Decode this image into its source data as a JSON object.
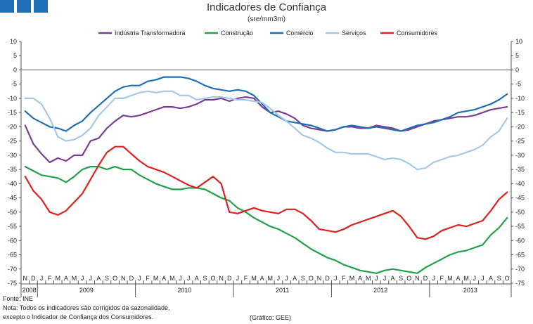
{
  "header": {
    "logo": "logo-squares",
    "title": "Indicadores de Confiança",
    "subtitle": "(sre/mm3m)"
  },
  "footer": {
    "source": "Fonte: INE",
    "note1": "Nota: Todos os indicadores são corrigidos da sazonalidade,",
    "note2": "excepto o Indicador de Confiança dos Consumidores.",
    "credit": "(Gráfico: GEE)"
  },
  "chart_data": {
    "type": "line",
    "title": "Indicadores de Confiança",
    "subtitle": "(sre/mm3m)",
    "xlabel": "",
    "ylabel": "",
    "ylim": [
      -75,
      10
    ],
    "yticks": [
      10,
      5,
      0,
      -5,
      -10,
      -15,
      -20,
      -25,
      -30,
      -35,
      -40,
      -45,
      -50,
      -55,
      -60,
      -65,
      -70,
      -75
    ],
    "ytick_labels": [
      "10",
      "5",
      "0",
      "-5",
      "-10",
      "-15",
      "-20",
      "-25",
      "-30",
      "-35",
      "-40",
      "-45",
      "-50",
      "-55",
      "-60",
      "-65",
      "-70",
      "-75"
    ],
    "grid": false,
    "legend": "top",
    "categories": [
      "N",
      "D",
      "J",
      "F",
      "M",
      "A",
      "M",
      "J",
      "J",
      "A",
      "S",
      "O",
      "N",
      "D",
      "J",
      "F",
      "M",
      "A",
      "M",
      "J",
      "J",
      "A",
      "S",
      "O",
      "N",
      "D",
      "J",
      "F",
      "M",
      "A",
      "M",
      "J",
      "J",
      "A",
      "S",
      "O",
      "N",
      "D",
      "J",
      "F",
      "M",
      "A",
      "M",
      "J",
      "J",
      "A",
      "S",
      "O",
      "N",
      "D",
      "J",
      "F",
      "M",
      "A",
      "M",
      "J",
      "J",
      "A",
      "S",
      "O"
    ],
    "years": [
      {
        "label": "2008",
        "start": 0,
        "end": 1
      },
      {
        "label": "2009",
        "start": 2,
        "end": 13
      },
      {
        "label": "2010",
        "start": 14,
        "end": 25
      },
      {
        "label": "2011",
        "start": 26,
        "end": 37
      },
      {
        "label": "2012",
        "start": 38,
        "end": 49
      },
      {
        "label": "2013",
        "start": 50,
        "end": 59
      }
    ],
    "series": [
      {
        "name": "Indústria Transformadora",
        "color": "#7b3f8f",
        "values": [
          -19.5,
          -26,
          -29.5,
          -32.5,
          -31,
          -32,
          -30,
          -30,
          -25,
          -24,
          -20.5,
          -18,
          -16,
          -16.5,
          -16,
          -15,
          -14,
          -13,
          -13,
          -13.5,
          -13,
          -12,
          -10.5,
          -10.5,
          -10,
          -11,
          -10,
          -9.5,
          -10,
          -13,
          -15,
          -14.5,
          -15.5,
          -17,
          -19.5,
          -20.5,
          -21,
          -21.5,
          -21,
          -20,
          -20,
          -20.5,
          -20.5,
          -19.5,
          -20,
          -20.5,
          -21.5,
          -21,
          -20,
          -19,
          -18,
          -17.5,
          -17,
          -16.5,
          -16.5,
          -16,
          -15,
          -14,
          -13.5,
          -13
        ]
      },
      {
        "name": "Construção",
        "color": "#22a04a",
        "values": [
          -34,
          -35.5,
          -37,
          -37.5,
          -38,
          -39.5,
          -37.5,
          -35,
          -34,
          -34,
          -35,
          -34,
          -35,
          -35,
          -37,
          -38.5,
          -40,
          -41,
          -42,
          -42,
          -41.5,
          -41.5,
          -42,
          -43.5,
          -45,
          -46,
          -48.5,
          -50,
          -52,
          -53.5,
          -55,
          -56,
          -57.5,
          -59,
          -61,
          -63,
          -64.5,
          -66,
          -67,
          -68.5,
          -69.5,
          -70.5,
          -71,
          -71.5,
          -70.5,
          -70,
          -70.5,
          -71,
          -71.5,
          -69.5,
          -68,
          -66.5,
          -65,
          -64,
          -63.5,
          -62.5,
          -61.5,
          -58,
          -55.5,
          -52
        ]
      },
      {
        "name": "Comércio",
        "color": "#1f6fb2",
        "values": [
          -14.5,
          -17,
          -18.5,
          -20,
          -20.5,
          -21.5,
          -19.5,
          -18,
          -15,
          -12.5,
          -10,
          -7.5,
          -6,
          -5.5,
          -5.5,
          -4,
          -3.5,
          -2.5,
          -2.5,
          -2.5,
          -3,
          -4,
          -5.5,
          -6.5,
          -7,
          -7.5,
          -7,
          -7.5,
          -9,
          -12,
          -15,
          -16.5,
          -18,
          -18.5,
          -19,
          -19.5,
          -20.5,
          -21.5,
          -21,
          -20,
          -19.5,
          -20,
          -20.5,
          -20,
          -20.5,
          -21,
          -21.5,
          -20.5,
          -19.5,
          -19,
          -18.5,
          -17.5,
          -16.5,
          -15,
          -14.5,
          -14,
          -13,
          -12,
          -10.5,
          -8.5
        ]
      },
      {
        "name": "Serviços",
        "color": "#a6c8e8",
        "values": [
          -10,
          -10,
          -12,
          -17,
          -23.5,
          -25,
          -24.5,
          -23,
          -20.5,
          -16,
          -13,
          -10,
          -10,
          -9,
          -8,
          -7.5,
          -8,
          -7.5,
          -7.5,
          -9,
          -9,
          -10.5,
          -10,
          -9.5,
          -9.5,
          -10,
          -10.5,
          -10.5,
          -11,
          -11.5,
          -13.5,
          -16,
          -18,
          -20.5,
          -23,
          -24,
          -25.5,
          -27.5,
          -29,
          -29,
          -29.5,
          -29.5,
          -29.5,
          -30.5,
          -31.5,
          -31,
          -31.5,
          -33,
          -35,
          -34.5,
          -32.5,
          -31.5,
          -30.5,
          -30,
          -29,
          -28,
          -26.5,
          -23.5,
          -21.5,
          -17
        ]
      },
      {
        "name": "Consumidores",
        "color": "#e02020",
        "values": [
          -37.5,
          -42.5,
          -45.5,
          -50,
          -51,
          -49.5,
          -46.5,
          -43.5,
          -38.5,
          -33.5,
          -29,
          -27,
          -27,
          -29.5,
          -32,
          -34,
          -35,
          -36,
          -37.5,
          -39,
          -40.5,
          -41.5,
          -39.5,
          -37.5,
          -40,
          -50,
          -50.5,
          -49.5,
          -48.5,
          -49.5,
          -50,
          -50.5,
          -49,
          -49,
          -50.5,
          -53,
          -56,
          -56.5,
          -57,
          -56,
          -54.5,
          -53.5,
          -52.5,
          -51.5,
          -50.5,
          -49.5,
          -51.5,
          -55,
          -59,
          -59.5,
          -58.5,
          -56.5,
          -55.5,
          -54.5,
          -55,
          -54,
          -53,
          -49.5,
          -45.5,
          -43
        ]
      }
    ]
  }
}
